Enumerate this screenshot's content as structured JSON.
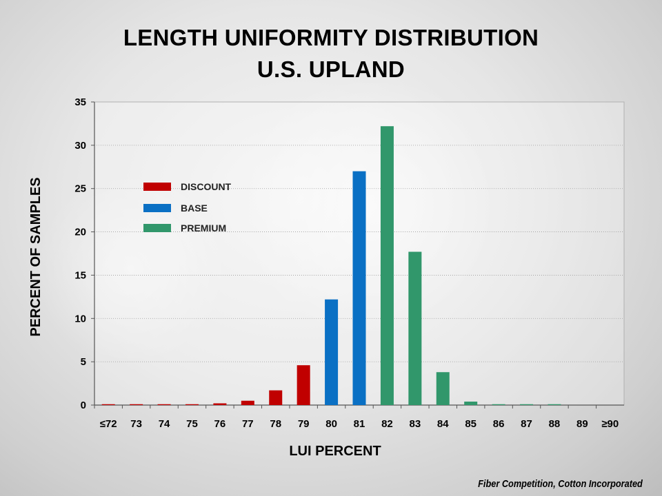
{
  "title_line1": "LENGTH UNIFORMITY DISTRIBUTION",
  "title_line2": "U.S. UPLAND",
  "credit": "Fiber Competition, Cotton Incorporated",
  "colors": {
    "discount": "#c00000",
    "base": "#0a70c4",
    "premium": "#31976b"
  },
  "chart_data": {
    "type": "bar",
    "xlabel": "LUI PERCENT",
    "ylabel": "PERCENT OF SAMPLES",
    "ylim": [
      0,
      35
    ],
    "yticks": [
      "0",
      "5",
      "10",
      "15",
      "20",
      "25",
      "30",
      "35"
    ],
    "grid": true,
    "legend_position": "top-left",
    "legend": [
      {
        "label": "DISCOUNT",
        "group": "discount"
      },
      {
        "label": "BASE",
        "group": "base"
      },
      {
        "label": "PREMIUM",
        "group": "premium"
      }
    ],
    "categories": [
      "≤72",
      "73",
      "74",
      "75",
      "76",
      "77",
      "78",
      "79",
      "80",
      "81",
      "82",
      "83",
      "84",
      "85",
      "86",
      "87",
      "88",
      "89",
      "≥90"
    ],
    "values": [
      0.1,
      0.1,
      0.1,
      0.1,
      0.2,
      0.5,
      1.7,
      4.6,
      12.2,
      27.0,
      32.2,
      17.7,
      3.8,
      0.4,
      0.1,
      0.1,
      0.1,
      0,
      0
    ],
    "groups": [
      "discount",
      "discount",
      "discount",
      "discount",
      "discount",
      "discount",
      "discount",
      "discount",
      "base",
      "base",
      "premium",
      "premium",
      "premium",
      "premium",
      "premium",
      "premium",
      "premium",
      "premium",
      "premium"
    ]
  }
}
